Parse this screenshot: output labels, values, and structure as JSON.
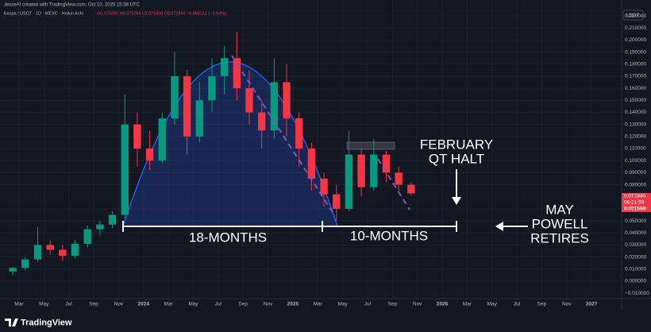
{
  "chart_data": {
    "type": "candlestick",
    "subtitle": "JesseAI created with TradingView.com, Oct 10, 2025 15:38 UTC",
    "title": "Kaspa / USDT · 1D · MEXC · Heikin Ashi",
    "ohlc_text": "O0.075056 H0.075056 L0.071000 C0.072840 −0.001211 (−1.64%)",
    "currency": "USDT",
    "price_tags": [
      "0.072840",
      "08:21:59",
      "0.071598"
    ],
    "annotations": [
      "18-MONTHS",
      "10-MONTHS",
      "FEBRUARY",
      "QT HALT",
      "MAY",
      "POWELL",
      "RETIRES"
    ],
    "brand": "TradingView",
    "up_color": "#089981",
    "down_color": "#f23645",
    "grid": true,
    "x": [
      "2023-02",
      "2023-03",
      "2023-04",
      "2023-05",
      "2023-06",
      "2023-07",
      "2023-08",
      "2023-09",
      "2023-10",
      "2023-11",
      "2023-12",
      "2024-01",
      "2024-02",
      "2024-03",
      "2024-04",
      "2024-05",
      "2024-06",
      "2024-07",
      "2024-08",
      "2024-09",
      "2024-10",
      "2024-11",
      "2024-12",
      "2025-01",
      "2025-02",
      "2025-03",
      "2025-04",
      "2025-05",
      "2025-06",
      "2025-07",
      "2025-08",
      "2025-09",
      "2025-10"
    ],
    "open": [
      0.008,
      0.011,
      0.018,
      0.03,
      0.026,
      0.021,
      0.031,
      0.043,
      0.047,
      0.055,
      0.13,
      0.11,
      0.1,
      0.135,
      0.17,
      0.12,
      0.15,
      0.17,
      0.185,
      0.16,
      0.14,
      0.125,
      0.165,
      0.135,
      0.11,
      0.085,
      0.072,
      0.06,
      0.105,
      0.078,
      0.105,
      0.09,
      0.08
    ],
    "high": [
      0.012,
      0.02,
      0.045,
      0.034,
      0.03,
      0.034,
      0.046,
      0.05,
      0.058,
      0.155,
      0.14,
      0.125,
      0.14,
      0.19,
      0.175,
      0.165,
      0.185,
      0.195,
      0.207,
      0.175,
      0.15,
      0.185,
      0.18,
      0.14,
      0.115,
      0.09,
      0.08,
      0.125,
      0.11,
      0.118,
      0.108,
      0.095,
      0.082
    ],
    "low": [
      0.005,
      0.009,
      0.016,
      0.022,
      0.017,
      0.019,
      0.028,
      0.038,
      0.044,
      0.052,
      0.095,
      0.092,
      0.098,
      0.13,
      0.105,
      0.115,
      0.14,
      0.155,
      0.15,
      0.13,
      0.11,
      0.118,
      0.12,
      0.095,
      0.075,
      0.062,
      0.05,
      0.058,
      0.07,
      0.075,
      0.082,
      0.075,
      0.071
    ],
    "close": [
      0.011,
      0.018,
      0.03,
      0.026,
      0.021,
      0.031,
      0.043,
      0.047,
      0.055,
      0.13,
      0.11,
      0.1,
      0.135,
      0.17,
      0.12,
      0.15,
      0.17,
      0.185,
      0.16,
      0.14,
      0.125,
      0.165,
      0.135,
      0.11,
      0.085,
      0.072,
      0.06,
      0.105,
      0.078,
      0.105,
      0.09,
      0.08,
      0.0728
    ],
    "xlim": [
      "2023-02",
      "2027-03"
    ],
    "xticks": [
      {
        "value": "2023-03",
        "label": "Mar"
      },
      {
        "value": "2023-05",
        "label": "May"
      },
      {
        "value": "2023-07",
        "label": "Jul"
      },
      {
        "value": "2023-09",
        "label": "Sep"
      },
      {
        "value": "2023-11",
        "label": "Nov"
      },
      {
        "value": "2024-01",
        "label": "2024"
      },
      {
        "value": "2024-03",
        "label": "Mar"
      },
      {
        "value": "2024-05",
        "label": "May"
      },
      {
        "value": "2024-07",
        "label": "Jul"
      },
      {
        "value": "2024-09",
        "label": "Sep"
      },
      {
        "value": "2024-11",
        "label": "Nov"
      },
      {
        "value": "2025-01",
        "label": "2025"
      },
      {
        "value": "2025-03",
        "label": "Mar"
      },
      {
        "value": "2025-05",
        "label": "May"
      },
      {
        "value": "2025-07",
        "label": "Jul"
      },
      {
        "value": "2025-09",
        "label": "Sep"
      },
      {
        "value": "2025-11",
        "label": "Nov"
      },
      {
        "value": "2026-01",
        "label": "2026"
      },
      {
        "value": "2026-03",
        "label": "Mar"
      },
      {
        "value": "2026-05",
        "label": "May"
      },
      {
        "value": "2026-07",
        "label": "Jul"
      },
      {
        "value": "2026-09",
        "label": "Sep"
      },
      {
        "value": "2026-11",
        "label": "Nov"
      },
      {
        "value": "2027-01",
        "label": "2027"
      }
    ],
    "ylim": [
      -0.0145,
      0.2253
    ],
    "yticks": [
      {
        "value": 0.22,
        "label": "0.220000"
      },
      {
        "value": 0.21,
        "label": "0.210000"
      },
      {
        "value": 0.2,
        "label": "0.200000"
      },
      {
        "value": 0.19,
        "label": "0.190000"
      },
      {
        "value": 0.18,
        "label": "0.180000"
      },
      {
        "value": 0.17,
        "label": "0.170000"
      },
      {
        "value": 0.16,
        "label": "0.160000"
      },
      {
        "value": 0.15,
        "label": "0.150000"
      },
      {
        "value": 0.14,
        "label": "0.140000"
      },
      {
        "value": 0.13,
        "label": "0.130000"
      },
      {
        "value": 0.12,
        "label": "0.120000"
      },
      {
        "value": 0.11,
        "label": "0.110000"
      },
      {
        "value": 0.1,
        "label": "0.100000"
      },
      {
        "value": 0.09,
        "label": "0.090000"
      },
      {
        "value": 0.08,
        "label": "0.080000"
      },
      {
        "value": 0.06,
        "label": "0.060000"
      },
      {
        "value": 0.05,
        "label": "0.050000"
      },
      {
        "value": 0.04,
        "label": "0.040000"
      },
      {
        "value": 0.03,
        "label": "0.030000"
      },
      {
        "value": 0.02,
        "label": "0.020000"
      },
      {
        "value": 0.01,
        "label": "0.010000"
      },
      {
        "value": 0,
        "label": "0.000000"
      },
      {
        "value": -0.01,
        "label": "−0.010000"
      }
    ]
  }
}
